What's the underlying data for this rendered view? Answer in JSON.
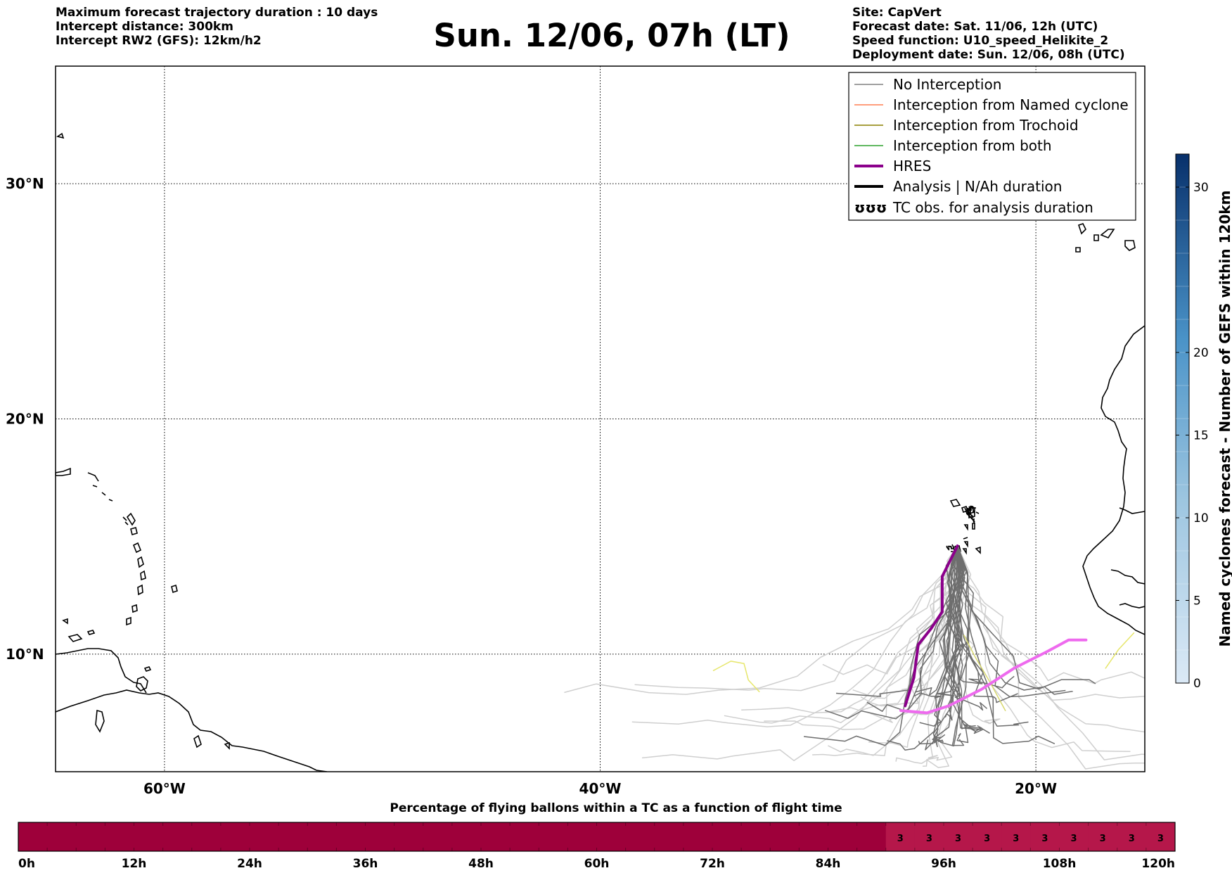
{
  "header": {
    "left_lines": [
      "Maximum forecast trajectory duration : 10 days",
      "Intercept distance: 300km",
      "Intercept RW2 (GFS):  12km/h2"
    ],
    "title": "Sun. 12/06, 07h (LT)",
    "right_lines": [
      "Site: CapVert",
      "Forecast date: Sat. 11/06, 12h (UTC)",
      "Speed function: U10_speed_Helikite_2",
      "Deployment date: Sun. 12/06, 08h (UTC)"
    ]
  },
  "map": {
    "lon_range": [
      -65,
      -15
    ],
    "lat_range": [
      5,
      35
    ],
    "lon_ticks": [
      {
        "value": -60,
        "label": "60°W"
      },
      {
        "value": -40,
        "label": "40°W"
      },
      {
        "value": -20,
        "label": "20°W"
      }
    ],
    "lat_ticks": [
      {
        "value": 10,
        "label": "10°N"
      },
      {
        "value": 20,
        "label": "20°N"
      },
      {
        "value": 30,
        "label": "30°N"
      }
    ],
    "gridlines": "dotted"
  },
  "legend": {
    "placement": "top-right",
    "entries": [
      {
        "label": "No Interception",
        "color": "#808080",
        "style": "thin"
      },
      {
        "label": "Interception from Named cyclone",
        "color": "#ff7f50",
        "style": "thin"
      },
      {
        "label": "Interception from Trochoid",
        "color": "#8b8000",
        "style": "thin"
      },
      {
        "label": "Interception from both",
        "color": "#2ca02c",
        "style": "thin"
      },
      {
        "label": "HRES",
        "color": "#8b008b",
        "style": "thick"
      },
      {
        "label": "Analysis | N/Ah duration",
        "color": "#000000",
        "style": "thick"
      },
      {
        "label": "TC obs. for analysis duration",
        "symbol": "ʊʊʊ",
        "style": "symbol"
      }
    ]
  },
  "colorbar": {
    "label": "Named cyclones forecast - Number of GEFS within 120km",
    "range": [
      0,
      32
    ],
    "ticks": [
      0,
      5,
      10,
      15,
      20,
      30
    ],
    "color_low": "#dbe9f6",
    "color_high": "#08306b"
  },
  "trajectories": {
    "hres": [
      [
        -23.6,
        14.6
      ],
      [
        -24.3,
        13.3
      ],
      [
        -24.3,
        11.8
      ],
      [
        -24.8,
        11.1
      ],
      [
        -25.4,
        10.4
      ],
      [
        -25.6,
        9.0
      ],
      [
        -26.0,
        7.8
      ]
    ],
    "analysis_pink": [
      [
        -26.2,
        7.6
      ],
      [
        -25.0,
        7.5
      ],
      [
        -24.0,
        7.8
      ],
      [
        -22.5,
        8.5
      ],
      [
        -21.0,
        9.4
      ],
      [
        -19.5,
        10.1
      ],
      [
        -18.5,
        10.6
      ],
      [
        -17.7,
        10.6
      ]
    ],
    "yellow_1": [
      [
        -34.8,
        9.3
      ],
      [
        -34.0,
        9.7
      ],
      [
        -33.4,
        9.6
      ],
      [
        -33.2,
        8.9
      ],
      [
        -32.7,
        8.4
      ]
    ],
    "yellow_2": [
      [
        -16.8,
        9.4
      ],
      [
        -16.2,
        10.2
      ],
      [
        -15.5,
        10.9
      ]
    ],
    "yellow_3": [
      [
        -23.3,
        10.8
      ],
      [
        -22.8,
        9.9
      ],
      [
        -22.1,
        8.8
      ],
      [
        -21.4,
        7.6
      ]
    ]
  },
  "flight_time_bar": {
    "title": "Percentage of flying ballons within a TC as a function of flight time",
    "tick_labels": [
      "0h",
      "12h",
      "24h",
      "36h",
      "48h",
      "60h",
      "72h",
      "84h",
      "96h",
      "108h",
      "120h"
    ],
    "tick_hours": [
      0,
      12,
      24,
      36,
      48,
      60,
      72,
      84,
      96,
      108,
      120
    ],
    "max_hours": 120,
    "segment_hours": 3,
    "base_color": "#9e003a",
    "highlight_color": "#b5174a",
    "highlight_start_hour": 90,
    "value_labels": [
      {
        "hour": 91.5,
        "text": "3"
      },
      {
        "hour": 94.5,
        "text": "3"
      },
      {
        "hour": 97.5,
        "text": "3"
      },
      {
        "hour": 100.5,
        "text": "3"
      },
      {
        "hour": 103.5,
        "text": "3"
      },
      {
        "hour": 106.5,
        "text": "3"
      },
      {
        "hour": 109.5,
        "text": "3"
      },
      {
        "hour": 112.5,
        "text": "3"
      },
      {
        "hour": 115.5,
        "text": "3"
      },
      {
        "hour": 118.5,
        "text": "3"
      }
    ]
  }
}
